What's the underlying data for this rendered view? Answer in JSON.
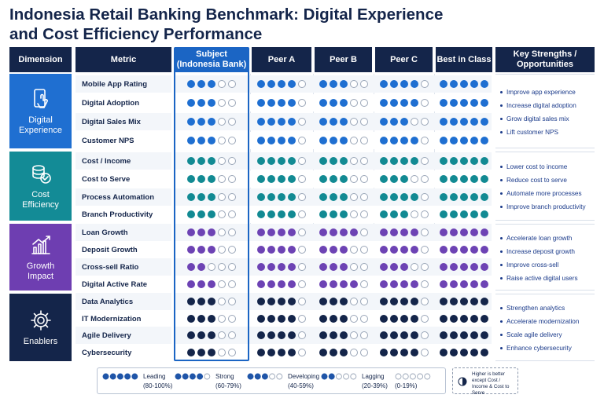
{
  "title_line1": "Indonesia Retail Banking Benchmark: Digital Experience",
  "title_line2": "and Cost Efficiency Performance",
  "headers": {
    "dimension": "Dimension",
    "metric": "Metric",
    "subject_l1": "Subject",
    "subject_l2": "(Indonesia Bank)",
    "peer_a": "Peer A",
    "peer_b": "Peer B",
    "peer_c": "Peer C",
    "best": "Best in Class",
    "opp_l1": "Key Strengths /",
    "opp_l2": "Opportunities"
  },
  "colors": {
    "digital": "#1f6fd1",
    "cost": "#128a93",
    "growth": "#6d43b4",
    "enablers": "#14254a",
    "dim_bg_digital": "#1f6fd1",
    "dim_bg_cost": "#138b96",
    "dim_bg_growth": "#6e3eb1",
    "dim_bg_enablers": "#14254a"
  },
  "chart_data": {
    "type": "table",
    "scale_max": 5,
    "columns": [
      "Subject (Indonesia Bank)",
      "Peer A",
      "Peer B",
      "Peer C",
      "Best in Class"
    ],
    "dimensions": [
      {
        "name_l1": "Digital",
        "name_l2": "Experience",
        "icon": "phone-tap-icon",
        "color_key": "digital",
        "rows": [
          {
            "metric": "Mobile App Rating",
            "values": [
              3,
              4,
              3,
              4,
              5
            ]
          },
          {
            "metric": "Digital Adoption",
            "values": [
              3,
              4,
              3,
              4,
              5
            ]
          },
          {
            "metric": "Digital Sales Mix",
            "values": [
              3,
              4,
              3,
              3,
              5
            ]
          },
          {
            "metric": "Customer NPS",
            "values": [
              3,
              4,
              3,
              4,
              5
            ]
          }
        ],
        "opportunities": [
          "Improve app experience",
          "Increase digital adoption",
          "Grow digital sales mix",
          "Lift customer NPS"
        ]
      },
      {
        "name_l1": "Cost",
        "name_l2": "Efficiency",
        "icon": "coins-icon",
        "color_key": "cost",
        "rows": [
          {
            "metric": "Cost / Income",
            "values": [
              3,
              4,
              3,
              4,
              5
            ]
          },
          {
            "metric": "Cost to Serve",
            "values": [
              3,
              4,
              3,
              3,
              5
            ]
          },
          {
            "metric": "Process Automation",
            "values": [
              3,
              4,
              3,
              4,
              5
            ]
          },
          {
            "metric": "Branch Productivity",
            "values": [
              3,
              4,
              3,
              3,
              5
            ]
          }
        ],
        "opportunities": [
          "Lower cost to income",
          "Reduce cost to serve",
          "Automate more processes",
          "Improve branch productivity"
        ]
      },
      {
        "name_l1": "Growth",
        "name_l2": "Impact",
        "icon": "growth-chart-icon",
        "color_key": "growth",
        "rows": [
          {
            "metric": "Loan Growth",
            "values": [
              3,
              4,
              4,
              4,
              5
            ]
          },
          {
            "metric": "Deposit Growth",
            "values": [
              3,
              4,
              3,
              4,
              5
            ]
          },
          {
            "metric": "Cross-sell Ratio",
            "values": [
              2,
              4,
              3,
              3,
              5
            ]
          },
          {
            "metric": "Digital Active Rate",
            "values": [
              3,
              4,
              4,
              4,
              5
            ]
          }
        ],
        "opportunities": [
          "Accelerate loan growth",
          "Increase deposit growth",
          "Improve cross-sell",
          "Raise active digital users"
        ]
      },
      {
        "name_l1": "Enablers",
        "name_l2": "",
        "icon": "gear-icon",
        "color_key": "enablers",
        "rows": [
          {
            "metric": "Data Analytics",
            "values": [
              3,
              4,
              3,
              4,
              5
            ]
          },
          {
            "metric": "IT Modernization",
            "values": [
              3,
              4,
              3,
              4,
              5
            ]
          },
          {
            "metric": "Agile Delivery",
            "values": [
              3,
              4,
              3,
              4,
              5
            ]
          },
          {
            "metric": "Cybersecurity",
            "values": [
              3,
              4,
              3,
              4,
              5
            ]
          }
        ],
        "opportunities": [
          "Strengthen analytics",
          "Accelerate modernization",
          "Scale agile delivery",
          "Enhance cybersecurity"
        ]
      }
    ]
  },
  "legend": [
    {
      "label": "Leading",
      "range": "(80-100%)",
      "filled": 5
    },
    {
      "label": "Strong",
      "range": "(60-79%)",
      "filled": 4
    },
    {
      "label": "Developing",
      "range": "(40-59%)",
      "filled": 3
    },
    {
      "label": "Lagging",
      "range": "(20-39%)",
      "filled": 2
    },
    {
      "label": "",
      "range": "(0-19%)",
      "filled": 0
    }
  ],
  "note": "Higher is better except Cost / Income & Cost to Serve"
}
